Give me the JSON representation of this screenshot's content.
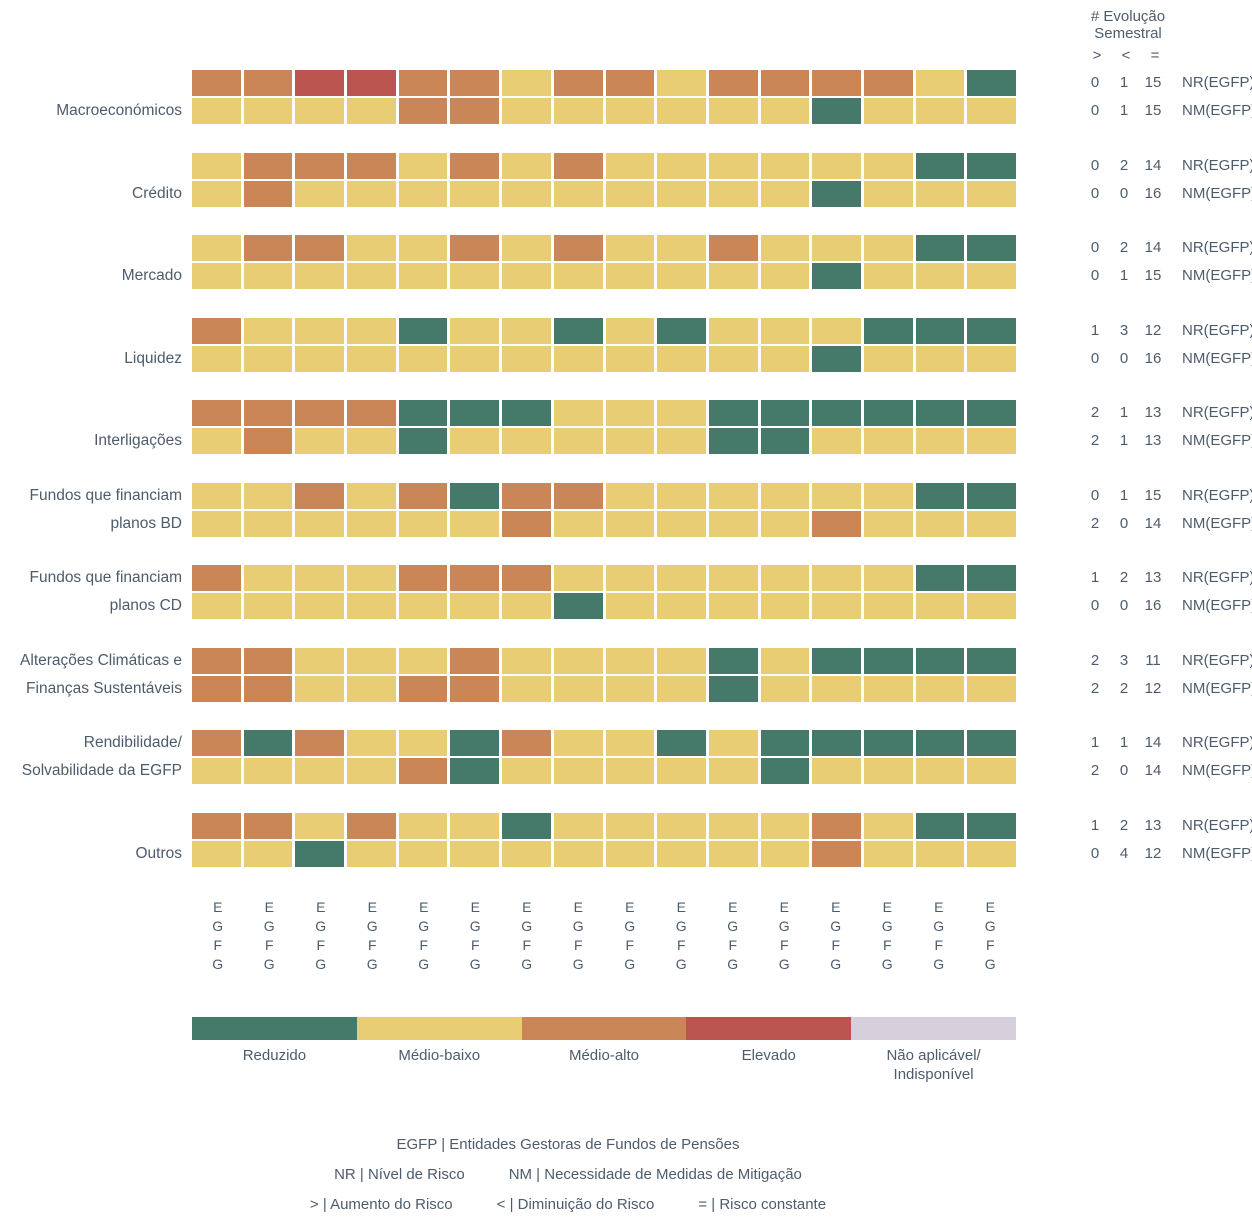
{
  "stats_header": {
    "line1": "# Evolução",
    "line2": "Semestral",
    "sym_gt": ">",
    "sym_lt": "<",
    "sym_eq": "="
  },
  "legend": {
    "items": [
      {
        "lines": [
          "Reduzido"
        ],
        "color": "#45796a"
      },
      {
        "lines": [
          "Médio-baixo"
        ],
        "color": "#e9cd74"
      },
      {
        "lines": [
          "Médio-alto"
        ],
        "color": "#ca8656"
      },
      {
        "lines": [
          "Elevado"
        ],
        "color": "#b9544f"
      },
      {
        "lines": [
          "Não aplicável/",
          "Indisponível"
        ],
        "color": "#d5d0dc"
      }
    ]
  },
  "footer": {
    "line1": "EGFP | Entidades Gestoras de Fundos de Pensões",
    "line2a": "NR | Nível de Risco",
    "line2b": "NM | Necessidade de Medidas de Mitigação",
    "line3a": "> | Aumento do Risco",
    "line3b": "< | Diminuição do Risco",
    "line3c": "= | Risco constante"
  },
  "chart_data": {
    "type": "heatmap",
    "columns": 16,
    "x_labels": [
      "EGFG",
      "EGFG",
      "EGFG",
      "EGFG",
      "EGFG",
      "EGFG",
      "EGFG",
      "EGFG",
      "EGFG",
      "EGFG",
      "EGFG",
      "EGFG",
      "EGFG",
      "EGFG",
      "EGFG",
      "EGFG"
    ],
    "colors": {
      "g": "#45796a",
      "y": "#e9cd74",
      "o": "#ca8656",
      "r": "#b9544f",
      "na": "#d5d0dc"
    },
    "levels": {
      "g": "Reduzido",
      "y": "Médio-baixo",
      "o": "Médio-alto",
      "r": "Elevado",
      "na": "Não aplicável/Indisponível"
    },
    "row_labels": {
      "nr": "NR(EGFP)",
      "nm": "NM(EGFP)"
    },
    "stats_columns": [
      ">",
      "<",
      "="
    ],
    "rows": [
      {
        "label_lines": [
          "",
          "Macroeconómicos"
        ],
        "nr": [
          "o",
          "o",
          "r",
          "r",
          "o",
          "o",
          "y",
          "o",
          "o",
          "y",
          "o",
          "o",
          "o",
          "o",
          "y",
          "g"
        ],
        "nm": [
          "y",
          "y",
          "y",
          "y",
          "o",
          "o",
          "y",
          "y",
          "y",
          "y",
          "y",
          "y",
          "g",
          "y",
          "y",
          "y"
        ],
        "stats_nr": [
          "0",
          "1",
          "15"
        ],
        "stats_nm": [
          "0",
          "1",
          "15"
        ]
      },
      {
        "label_lines": [
          "",
          "Crédito"
        ],
        "nr": [
          "y",
          "o",
          "o",
          "o",
          "y",
          "o",
          "y",
          "o",
          "y",
          "y",
          "y",
          "y",
          "y",
          "y",
          "g",
          "g"
        ],
        "nm": [
          "y",
          "o",
          "y",
          "y",
          "y",
          "y",
          "y",
          "y",
          "y",
          "y",
          "y",
          "y",
          "g",
          "y",
          "y",
          "y"
        ],
        "stats_nr": [
          "0",
          "2",
          "14"
        ],
        "stats_nm": [
          "0",
          "0",
          "16"
        ]
      },
      {
        "label_lines": [
          "",
          "Mercado"
        ],
        "nr": [
          "y",
          "o",
          "o",
          "y",
          "y",
          "o",
          "y",
          "o",
          "y",
          "y",
          "o",
          "y",
          "y",
          "y",
          "g",
          "g"
        ],
        "nm": [
          "y",
          "y",
          "y",
          "y",
          "y",
          "y",
          "y",
          "y",
          "y",
          "y",
          "y",
          "y",
          "g",
          "y",
          "y",
          "y"
        ],
        "stats_nr": [
          "0",
          "2",
          "14"
        ],
        "stats_nm": [
          "0",
          "1",
          "15"
        ]
      },
      {
        "label_lines": [
          "",
          "Liquidez"
        ],
        "nr": [
          "o",
          "y",
          "y",
          "y",
          "g",
          "y",
          "y",
          "g",
          "y",
          "g",
          "y",
          "y",
          "y",
          "g",
          "g",
          "g"
        ],
        "nm": [
          "y",
          "y",
          "y",
          "y",
          "y",
          "y",
          "y",
          "y",
          "y",
          "y",
          "y",
          "y",
          "g",
          "y",
          "y",
          "y"
        ],
        "stats_nr": [
          "1",
          "3",
          "12"
        ],
        "stats_nm": [
          "0",
          "0",
          "16"
        ]
      },
      {
        "label_lines": [
          "",
          "Interligações"
        ],
        "nr": [
          "o",
          "o",
          "o",
          "o",
          "g",
          "g",
          "g",
          "y",
          "y",
          "y",
          "g",
          "g",
          "g",
          "g",
          "g",
          "g"
        ],
        "nm": [
          "y",
          "o",
          "y",
          "y",
          "g",
          "y",
          "y",
          "y",
          "y",
          "y",
          "g",
          "g",
          "y",
          "y",
          "y",
          "y"
        ],
        "stats_nr": [
          "2",
          "1",
          "13"
        ],
        "stats_nm": [
          "2",
          "1",
          "13"
        ]
      },
      {
        "label_lines": [
          "Fundos que financiam",
          "planos BD"
        ],
        "nr": [
          "y",
          "y",
          "o",
          "y",
          "o",
          "g",
          "o",
          "o",
          "y",
          "y",
          "y",
          "y",
          "y",
          "y",
          "g",
          "g"
        ],
        "nm": [
          "y",
          "y",
          "y",
          "y",
          "y",
          "y",
          "o",
          "y",
          "y",
          "y",
          "y",
          "y",
          "o",
          "y",
          "y",
          "y"
        ],
        "stats_nr": [
          "0",
          "1",
          "15"
        ],
        "stats_nm": [
          "2",
          "0",
          "14"
        ]
      },
      {
        "label_lines": [
          "Fundos que financiam",
          "planos CD"
        ],
        "nr": [
          "o",
          "y",
          "y",
          "y",
          "o",
          "o",
          "o",
          "y",
          "y",
          "y",
          "y",
          "y",
          "y",
          "y",
          "g",
          "g"
        ],
        "nm": [
          "y",
          "y",
          "y",
          "y",
          "y",
          "y",
          "y",
          "g",
          "y",
          "y",
          "y",
          "y",
          "y",
          "y",
          "y",
          "y"
        ],
        "stats_nr": [
          "1",
          "2",
          "13"
        ],
        "stats_nm": [
          "0",
          "0",
          "16"
        ]
      },
      {
        "label_lines": [
          "Alterações Climáticas e",
          "Finanças Sustentáveis"
        ],
        "nr": [
          "o",
          "o",
          "y",
          "y",
          "y",
          "o",
          "y",
          "y",
          "y",
          "y",
          "g",
          "y",
          "g",
          "g",
          "g",
          "g"
        ],
        "nm": [
          "o",
          "o",
          "y",
          "y",
          "o",
          "o",
          "y",
          "y",
          "y",
          "y",
          "g",
          "y",
          "y",
          "y",
          "y",
          "y"
        ],
        "stats_nr": [
          "2",
          "3",
          "11"
        ],
        "stats_nm": [
          "2",
          "2",
          "12"
        ]
      },
      {
        "label_lines": [
          "Rendibilidade/",
          "Solvabilidade da EGFP"
        ],
        "nr": [
          "o",
          "g",
          "o",
          "y",
          "y",
          "g",
          "o",
          "y",
          "y",
          "g",
          "y",
          "g",
          "g",
          "g",
          "g",
          "g"
        ],
        "nm": [
          "y",
          "y",
          "y",
          "y",
          "o",
          "g",
          "y",
          "y",
          "y",
          "y",
          "y",
          "g",
          "y",
          "y",
          "y",
          "y"
        ],
        "stats_nr": [
          "1",
          "1",
          "14"
        ],
        "stats_nm": [
          "2",
          "0",
          "14"
        ]
      },
      {
        "label_lines": [
          "",
          "Outros"
        ],
        "nr": [
          "o",
          "o",
          "y",
          "o",
          "y",
          "y",
          "g",
          "y",
          "y",
          "y",
          "y",
          "y",
          "o",
          "y",
          "g",
          "g"
        ],
        "nm": [
          "y",
          "y",
          "g",
          "y",
          "y",
          "y",
          "y",
          "y",
          "y",
          "y",
          "y",
          "y",
          "o",
          "y",
          "y",
          "y"
        ],
        "stats_nr": [
          "1",
          "2",
          "13"
        ],
        "stats_nm": [
          "0",
          "4",
          "12"
        ]
      }
    ]
  }
}
